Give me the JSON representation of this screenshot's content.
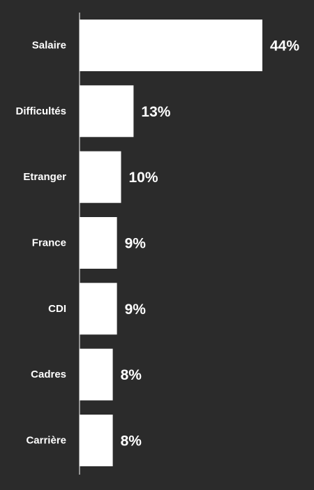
{
  "chart_data": {
    "type": "bar",
    "orientation": "horizontal",
    "categories": [
      "Salaire",
      "Difficultés",
      "Etranger",
      "France",
      "CDI",
      "Cadres",
      "Carrière"
    ],
    "values": [
      44,
      13,
      10,
      9,
      9,
      8,
      8
    ],
    "value_labels": [
      "44%",
      "13%",
      "10%",
      "9%",
      "9%",
      "8%",
      "8%"
    ],
    "title": "",
    "xlabel": "",
    "ylabel": "",
    "xlim": [
      0,
      44
    ],
    "grid": false,
    "legend": "none"
  },
  "colors": {
    "background": "#2b2b2b",
    "bar": "#ffffff",
    "text": "#ffffff",
    "axis": "#ffffff"
  }
}
